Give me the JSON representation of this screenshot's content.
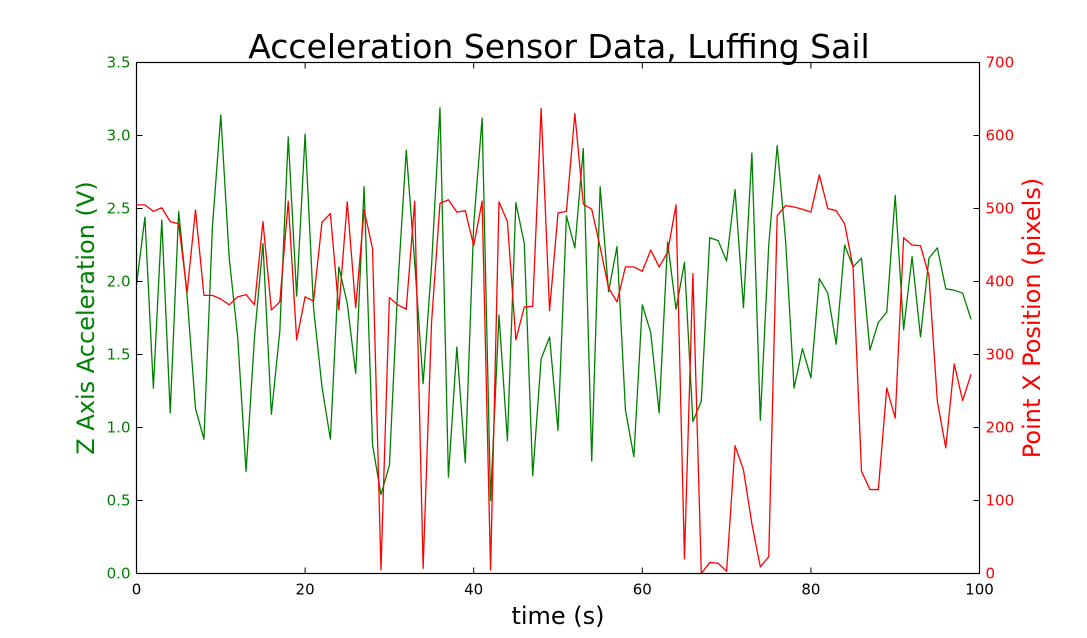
{
  "chart_data": {
    "type": "line",
    "title": "Acceleration Sensor Data, Luffing Sail",
    "xlabel": "time (s)",
    "ylabel_left": "Z Axis Acceleration (V)",
    "ylabel_right": "Point X Position (pixels)",
    "xlim": [
      0,
      100
    ],
    "ylim_left": [
      0,
      3.5
    ],
    "ylim_right": [
      0,
      700
    ],
    "x_ticks": [
      "0",
      "20",
      "40",
      "60",
      "80",
      "100"
    ],
    "y_left_ticks": [
      "0.0",
      "0.5",
      "1.0",
      "1.5",
      "2.0",
      "2.5",
      "3.0",
      "3.5"
    ],
    "y_right_ticks": [
      "0",
      "100",
      "200",
      "300",
      "400",
      "500",
      "600",
      "700"
    ],
    "grid": false,
    "colors": {
      "left": "#008000",
      "right": "#ff0000"
    },
    "series": [
      {
        "axis": "left",
        "x": [
          0,
          1,
          2,
          3,
          4,
          5,
          6,
          7,
          8,
          9,
          10,
          11,
          12,
          13,
          14,
          15,
          16,
          17,
          18,
          19,
          20,
          21,
          22,
          23,
          24,
          25,
          26,
          27,
          28,
          29,
          30,
          31,
          32,
          33,
          34,
          35,
          36,
          37,
          38,
          39,
          40,
          41,
          42,
          43,
          44,
          45,
          46,
          47,
          48,
          49,
          50,
          51,
          52,
          53,
          54,
          55,
          56,
          57,
          58,
          59,
          60,
          61,
          62,
          63,
          64,
          65,
          66,
          67,
          68,
          69,
          70,
          71,
          72,
          73,
          74,
          75,
          76,
          77,
          78,
          79,
          80,
          81,
          82,
          83,
          84,
          85,
          86,
          87,
          88,
          89,
          90,
          91,
          92,
          93,
          94,
          95,
          96,
          97,
          98,
          99
        ],
        "values": [
          1.98,
          2.44,
          1.27,
          2.42,
          1.1,
          2.48,
          1.9,
          1.13,
          0.92,
          2.37,
          3.14,
          2.16,
          1.62,
          0.7,
          1.62,
          2.26,
          1.09,
          1.66,
          2.99,
          1.9,
          3.01,
          1.82,
          1.28,
          0.92,
          2.1,
          1.85,
          1.37,
          2.65,
          0.88,
          0.54,
          0.74,
          1.97,
          2.9,
          2.13,
          1.3,
          2.11,
          3.19,
          0.66,
          1.55,
          0.76,
          2.39,
          3.12,
          0.5,
          1.77,
          0.91,
          2.54,
          2.26,
          0.67,
          1.47,
          1.62,
          0.98,
          2.45,
          2.23,
          2.91,
          0.77,
          2.65,
          1.93,
          2.24,
          1.12,
          0.8,
          1.84,
          1.65,
          1.1,
          2.27,
          1.81,
          2.13,
          1.04,
          1.18,
          2.3,
          2.28,
          2.14,
          2.63,
          1.82,
          2.88,
          1.05,
          2.25,
          2.93,
          2.28,
          1.27,
          1.54,
          1.34,
          2.02,
          1.92,
          1.57,
          2.25,
          2.1,
          2.16,
          1.53,
          1.72,
          1.79,
          2.59,
          1.67,
          2.17,
          1.62,
          2.16,
          2.23,
          1.95,
          1.94,
          1.92,
          1.74
        ]
      },
      {
        "axis": "right",
        "x": [
          0,
          1,
          2,
          3,
          4,
          5,
          6,
          7,
          8,
          9,
          10,
          11,
          12,
          13,
          14,
          15,
          16,
          17,
          18,
          19,
          20,
          21,
          22,
          23,
          24,
          25,
          26,
          27,
          28,
          29,
          30,
          31,
          32,
          33,
          34,
          35,
          36,
          37,
          38,
          39,
          40,
          41,
          42,
          43,
          44,
          45,
          46,
          47,
          48,
          49,
          50,
          51,
          52,
          53,
          54,
          55,
          56,
          57,
          58,
          59,
          60,
          61,
          62,
          63,
          64,
          65,
          66,
          67,
          68,
          69,
          70,
          71,
          72,
          73,
          74,
          75,
          76,
          77,
          78,
          79,
          80,
          81,
          82,
          83,
          84,
          85,
          86,
          87,
          88,
          89,
          90,
          91,
          92,
          93,
          94,
          95,
          96,
          97,
          98,
          99
        ],
        "values": [
          505,
          505,
          496,
          501,
          482,
          479,
          385,
          498,
          381,
          381,
          376,
          368,
          379,
          382,
          368,
          482,
          361,
          372,
          510,
          320,
          379,
          373,
          481,
          493,
          361,
          509,
          364,
          498,
          445,
          5,
          378,
          368,
          362,
          510,
          7,
          344,
          507,
          512,
          495,
          497,
          449,
          510,
          5,
          509,
          482,
          320,
          365,
          366,
          637,
          360,
          494,
          496,
          630,
          506,
          499,
          447,
          391,
          372,
          420,
          420,
          414,
          443,
          420,
          440,
          505,
          20,
          411,
          0,
          15,
          14,
          3,
          175,
          142,
          68,
          9,
          23,
          490,
          504,
          502,
          499,
          495,
          546,
          500,
          497,
          479,
          420,
          140,
          115,
          115,
          254,
          213,
          460,
          450,
          449,
          408,
          236,
          172,
          287,
          237,
          273
        ]
      }
    ]
  }
}
